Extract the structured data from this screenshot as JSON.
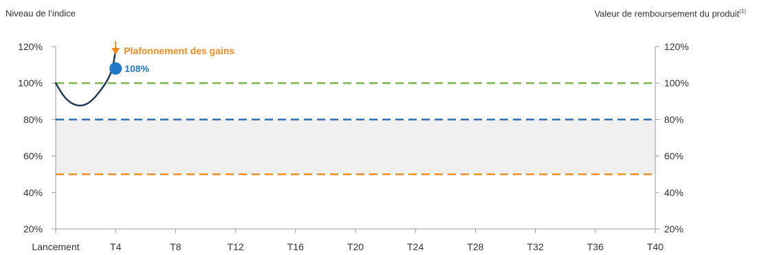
{
  "chart_data": {
    "type": "line",
    "left_axis_title": "Niveau de l’indice",
    "right_axis_title": "Valeur de remboursement du produit",
    "right_axis_title_sup": "(1)",
    "categories": [
      "Lancement",
      "T4",
      "T8",
      "T12",
      "T16",
      "T20",
      "T24",
      "T28",
      "T32",
      "T36",
      "T40"
    ],
    "x_range": [
      0,
      40
    ],
    "ylim": [
      20,
      120
    ],
    "y_ticks": [
      20,
      40,
      60,
      80,
      100,
      120
    ],
    "y_tick_labels": [
      "20%",
      "40%",
      "60%",
      "80%",
      "100%",
      "120%"
    ],
    "series": [
      {
        "color": "#1f3b5c",
        "points": [
          [
            0,
            100
          ],
          [
            0.5,
            93
          ],
          [
            1,
            89
          ],
          [
            1.5,
            87.5
          ],
          [
            2,
            88
          ],
          [
            2.5,
            91
          ],
          [
            3,
            96
          ],
          [
            3.5,
            102
          ],
          [
            3.8,
            108
          ],
          [
            4,
            118
          ]
        ]
      }
    ],
    "reference_lines": [
      {
        "y": 100,
        "color": "#7ab648",
        "style": "dashed"
      },
      {
        "y": 80,
        "color": "#2e6db4",
        "style": "dashed"
      },
      {
        "y": 50,
        "color": "#f28c1f",
        "style": "dashed"
      }
    ],
    "shaded_band": {
      "from": 50,
      "to": 80,
      "color": "#f0f0f0"
    },
    "markers": [
      {
        "x": 4,
        "y": 108,
        "label": "108%",
        "color": "#1f78c8"
      }
    ],
    "annotations": [
      {
        "x": 4,
        "y": 120,
        "text": "Plafonnement des gains",
        "color": "#f28c1f"
      }
    ],
    "grid": false,
    "legend": "none"
  }
}
